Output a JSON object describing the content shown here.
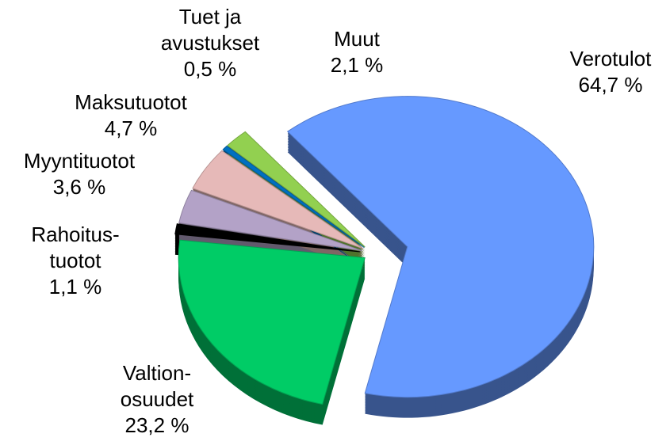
{
  "chart_data": {
    "type": "pie",
    "categories": [
      "Verotulot",
      "Valtion-\nosuudet",
      "Rahoitus-\ntuotot",
      "Myyntituotot",
      "Maksutuotot",
      "Tuet ja\navustukset",
      "Muut"
    ],
    "values": [
      64.7,
      23.2,
      1.1,
      3.6,
      4.7,
      0.5,
      2.1
    ],
    "value_labels": [
      "64,7 %",
      "23,2 %",
      "1,1 %",
      "3,6 %",
      "4,7 %",
      "0,5 %",
      "2,1 %"
    ],
    "colors": [
      "#6699ff",
      "#00cc66",
      "#000000",
      "#b3a2c7",
      "#e6b9b8",
      "#0070c0",
      "#92d050"
    ]
  }
}
